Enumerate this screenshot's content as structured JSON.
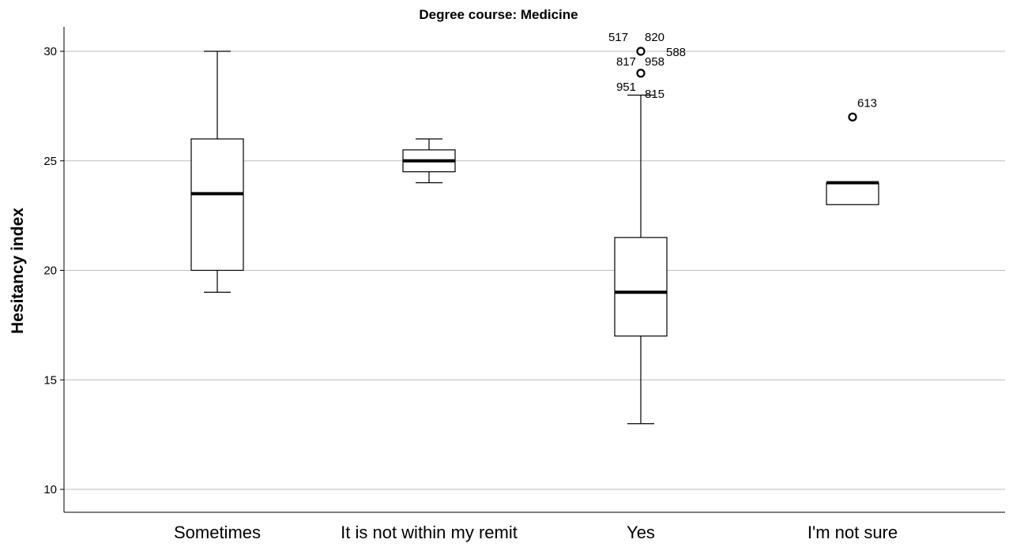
{
  "chart_data": {
    "type": "boxplot",
    "title": "Degree course: Medicine",
    "xlabel": "",
    "ylabel": "Hesitancy index",
    "ylim": [
      9,
      31
    ],
    "yticks": [
      10,
      15,
      20,
      25,
      30
    ],
    "grid": true,
    "categories": [
      "Sometimes",
      "It is not within my remit",
      "Yes",
      "I'm not sure"
    ],
    "boxes": [
      {
        "category": "Sometimes",
        "whisker_low": 19,
        "q1": 20,
        "median": 23.5,
        "q3": 26,
        "whisker_high": 30,
        "outliers": []
      },
      {
        "category": "It is not within my remit",
        "whisker_low": 24,
        "q1": 24.5,
        "median": 25,
        "q3": 25.5,
        "whisker_high": 26,
        "outliers": []
      },
      {
        "category": "Yes",
        "whisker_low": 13,
        "q1": 17,
        "median": 19,
        "q3": 21.5,
        "whisker_high": 28,
        "outliers": [
          {
            "value": 30,
            "labels": [
              "517",
              "820"
            ]
          },
          {
            "value": 29,
            "labels": [
              "817",
              "958",
              "588",
              "951",
              "815"
            ]
          }
        ]
      },
      {
        "category": "I'm not sure",
        "whisker_low": null,
        "q1": 23,
        "median": 24,
        "q3": 24,
        "whisker_high": null,
        "outliers": [
          {
            "value": 27,
            "labels": [
              "613"
            ]
          }
        ]
      }
    ]
  }
}
